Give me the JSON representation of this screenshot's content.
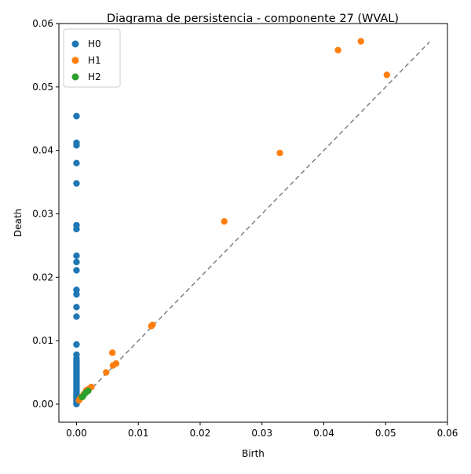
{
  "chart_data": {
    "type": "scatter",
    "title": "Diagrama de persistencia - componente 27 (WVAL)",
    "xlabel": "Birth",
    "ylabel": "Death",
    "xlim": [
      -0.00285,
      0.06
    ],
    "ylim": [
      -0.00285,
      0.06
    ],
    "xticks": [
      0.0,
      0.01,
      0.02,
      0.03,
      0.04,
      0.05,
      0.06
    ],
    "yticks": [
      0.0,
      0.01,
      0.02,
      0.03,
      0.04,
      0.05,
      0.06
    ],
    "xtick_labels": [
      "0.00",
      "0.01",
      "0.02",
      "0.03",
      "0.04",
      "0.05",
      "0.06"
    ],
    "ytick_labels": [
      "0.00",
      "0.01",
      "0.02",
      "0.03",
      "0.04",
      "0.05",
      "0.06"
    ],
    "grid": false,
    "legend_position": "top-left",
    "diagonal": {
      "from": [
        0,
        0
      ],
      "to": [
        0.0571,
        0.0571
      ],
      "color": "#808080",
      "style": "dashed"
    },
    "series": [
      {
        "name": "H0",
        "color": "#1f77b4",
        "points": [
          [
            0,
            0.0454
          ],
          [
            0,
            0.0412
          ],
          [
            0,
            0.0408
          ],
          [
            0,
            0.038
          ],
          [
            0,
            0.0348
          ],
          [
            0,
            0.0282
          ],
          [
            0,
            0.0276
          ],
          [
            0,
            0.0234
          ],
          [
            0,
            0.0224
          ],
          [
            0,
            0.0211
          ],
          [
            0,
            0.018
          ],
          [
            0,
            0.0173
          ],
          [
            0,
            0.0153
          ],
          [
            0,
            0.0138
          ],
          [
            0,
            0.0094
          ],
          [
            0,
            0.0078
          ],
          [
            0,
            0.0072
          ],
          [
            0,
            0.0068
          ],
          [
            0,
            0.0065
          ],
          [
            0,
            0.0062
          ],
          [
            0,
            0.0059
          ],
          [
            0,
            0.0056
          ],
          [
            0,
            0.0053
          ],
          [
            0,
            0.005
          ],
          [
            0,
            0.0047
          ],
          [
            0,
            0.0044
          ],
          [
            0,
            0.0041
          ],
          [
            0,
            0.0038
          ],
          [
            0,
            0.0035
          ],
          [
            0,
            0.0032
          ],
          [
            0,
            0.0029
          ],
          [
            0,
            0.0026
          ],
          [
            0,
            0.0023
          ],
          [
            0,
            0.002
          ],
          [
            0,
            0.0017
          ],
          [
            0,
            0.0014
          ],
          [
            0,
            0.0011
          ],
          [
            0,
            0.0008
          ],
          [
            0,
            0.0005
          ],
          [
            0,
            0.0002
          ],
          [
            0,
            0.0
          ]
        ]
      },
      {
        "name": "H1",
        "color": "#ff7f0e",
        "points": [
          [
            0.046,
            0.0572
          ],
          [
            0.0423,
            0.0558
          ],
          [
            0.0502,
            0.0519
          ],
          [
            0.0329,
            0.0396
          ],
          [
            0.0239,
            0.0288
          ],
          [
            0.0121,
            0.0123
          ],
          [
            0.0123,
            0.0125
          ],
          [
            0.0058,
            0.0081
          ],
          [
            0.0064,
            0.0064
          ],
          [
            0.0059,
            0.0061
          ],
          [
            0.0048,
            0.005
          ],
          [
            0.0024,
            0.0027
          ],
          [
            0.002,
            0.0024
          ],
          [
            0.0016,
            0.0022
          ],
          [
            0.0012,
            0.0016
          ],
          [
            0.0009,
            0.0012
          ],
          [
            0.0006,
            0.0009
          ],
          [
            0.0004,
            0.0006
          ]
        ]
      },
      {
        "name": "H2",
        "color": "#2ca02c",
        "points": [
          [
            0.0019,
            0.0021
          ],
          [
            0.0015,
            0.0018
          ],
          [
            0.0011,
            0.0013
          ],
          [
            0.0009,
            0.0011
          ]
        ]
      }
    ]
  }
}
